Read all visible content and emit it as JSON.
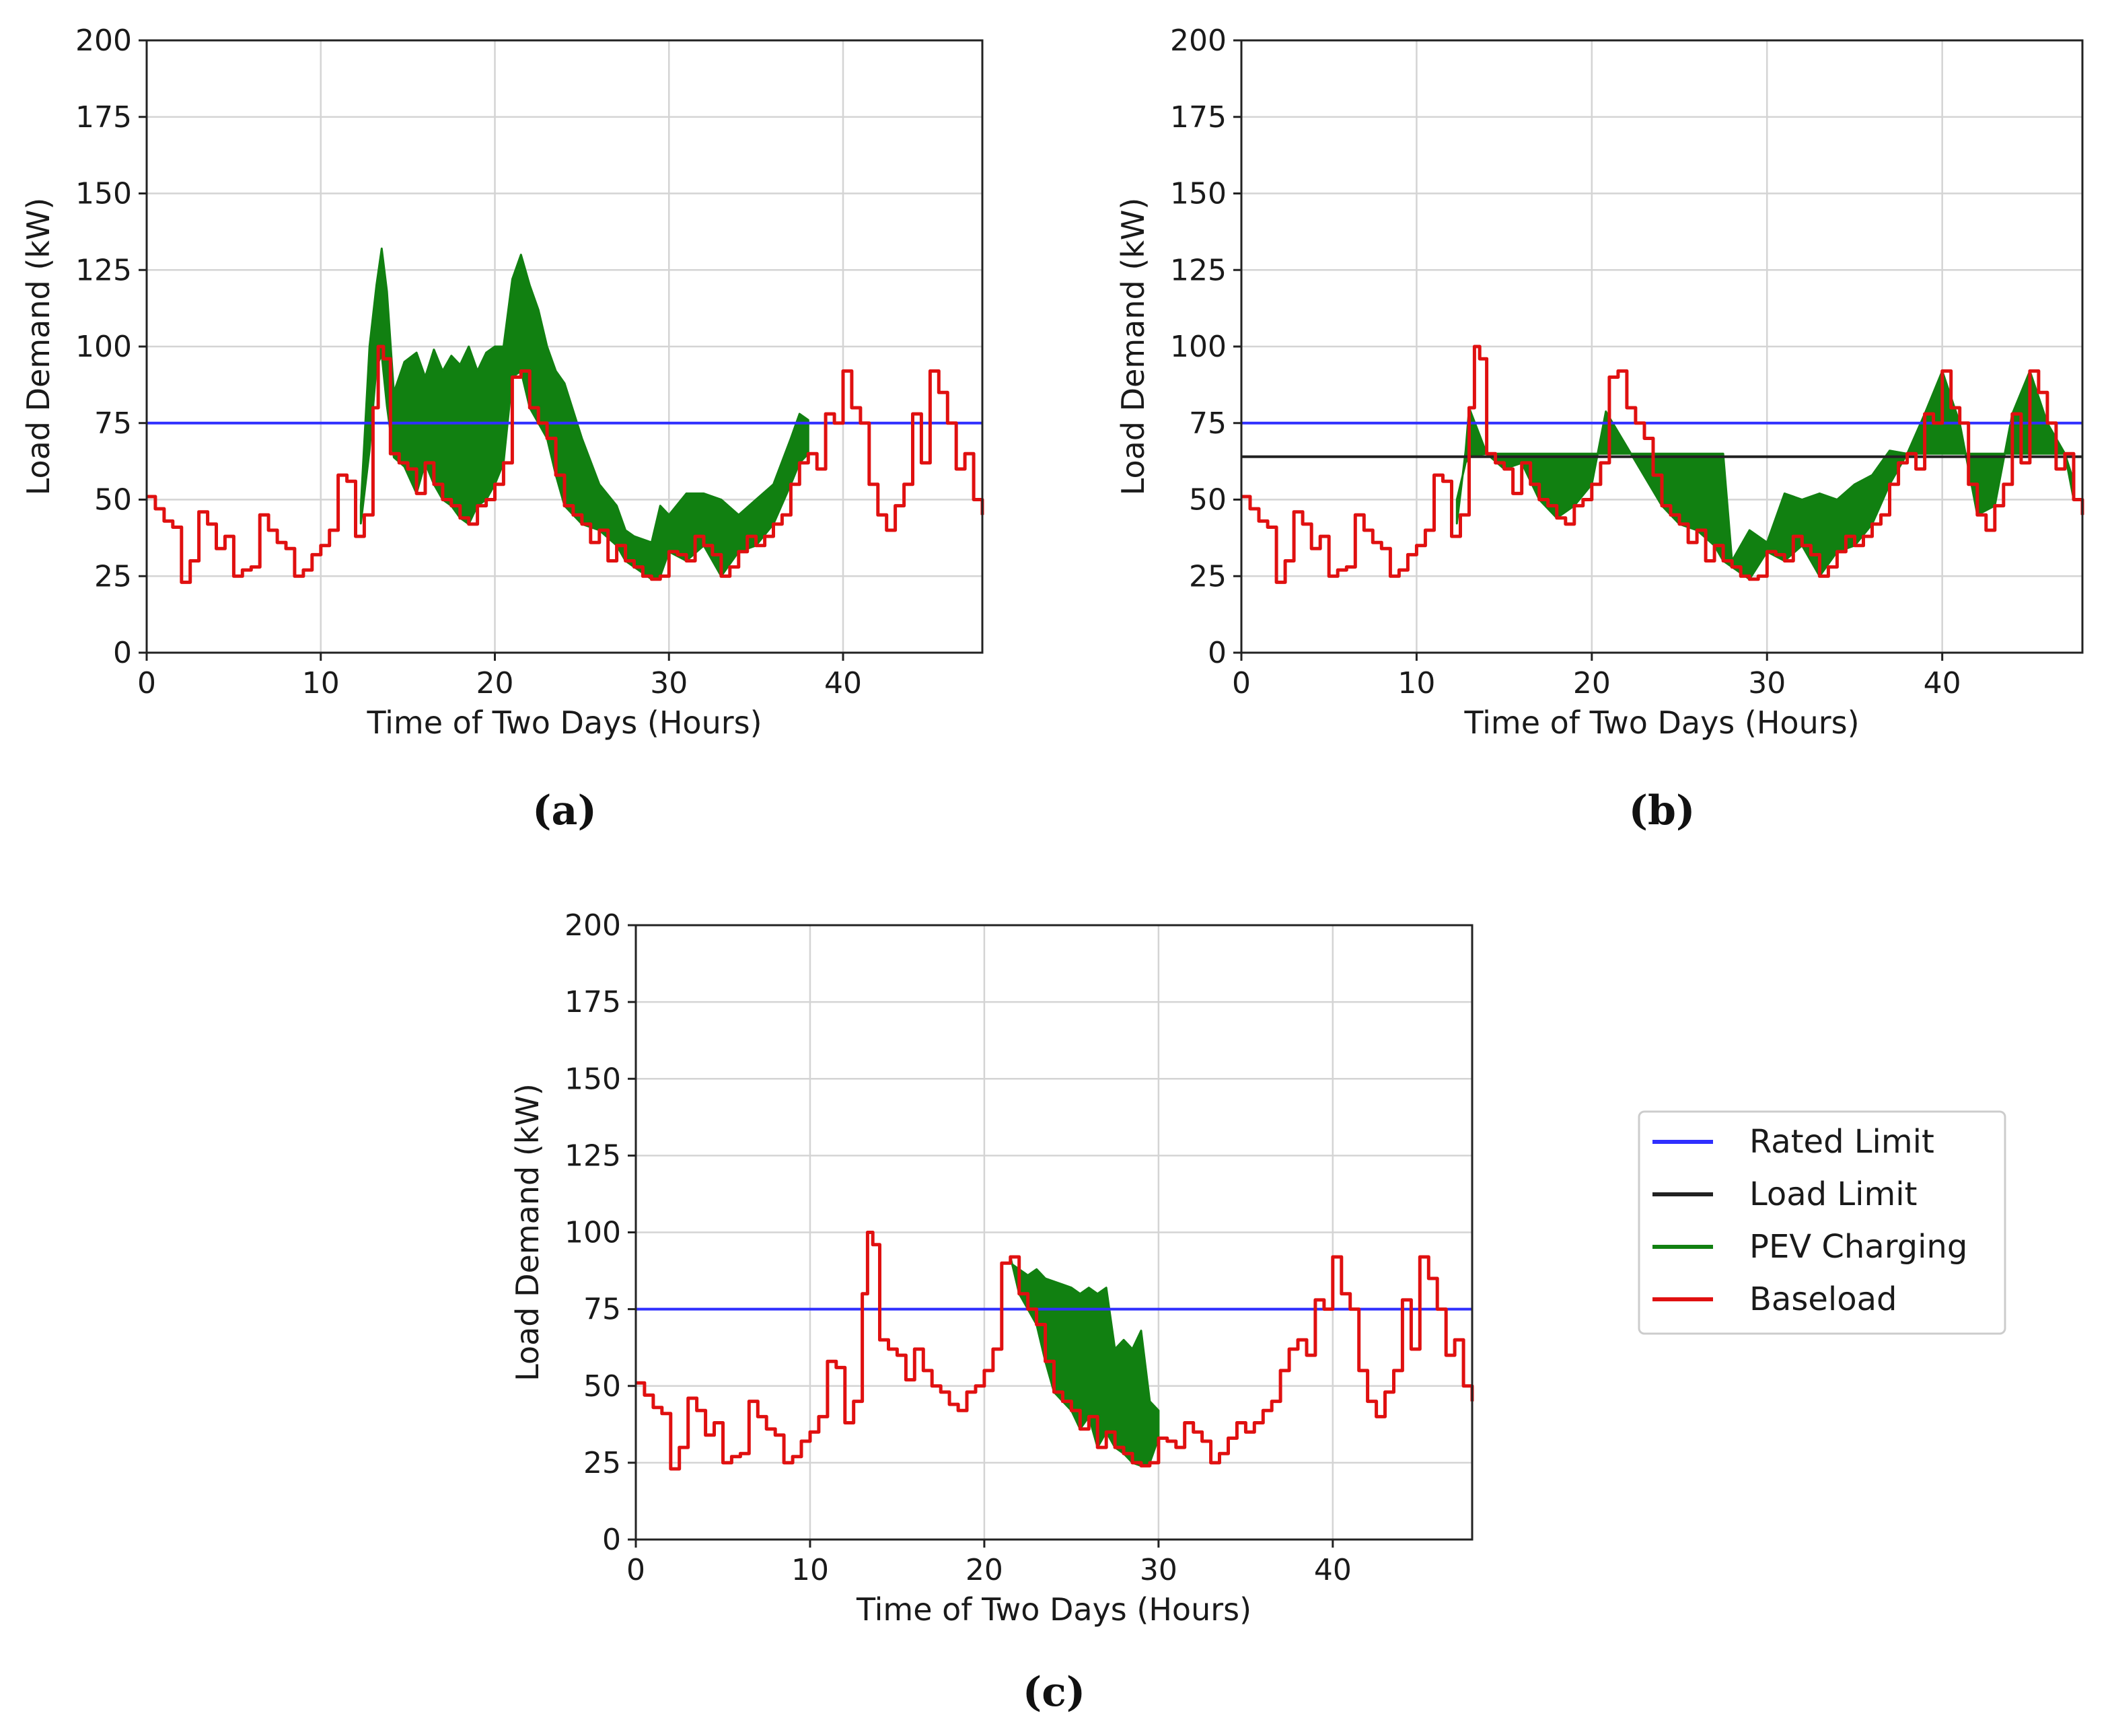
{
  "figure": {
    "legend": [
      {
        "label": "Rated Limit",
        "color": "#2f2fff"
      },
      {
        "label": "Load Limit",
        "color": "#222222"
      },
      {
        "label": "PEV Charging",
        "color": "#118011"
      },
      {
        "label": "Baseload",
        "color": "#e01010"
      }
    ]
  },
  "chart_data": [
    {
      "type": "line",
      "panel_label": "(a)",
      "xlabel": "Time of Two Days (Hours)",
      "ylabel": "Load Demand (kW)",
      "xlim": [
        0,
        48
      ],
      "ylim": [
        0,
        200
      ],
      "xticks": [
        0,
        10,
        20,
        30,
        40
      ],
      "yticks": [
        0,
        25,
        50,
        75,
        100,
        125,
        150,
        175,
        200
      ],
      "grid": true,
      "rated_limit": 75,
      "load_limit": null,
      "pev_charging": {
        "x": [
          12.3,
          12.8,
          13.2,
          13.5,
          13.8,
          14.2,
          14.8,
          15.5,
          16.0,
          16.5,
          17.0,
          17.5,
          18.0,
          18.5,
          19.0,
          19.5,
          20.0,
          20.5,
          21.0,
          21.5,
          22.0,
          22.5,
          23.0,
          23.5,
          24.0,
          25.0,
          26.0,
          27.0,
          27.5,
          28.0,
          29.0,
          29.5,
          30.0,
          31.0,
          32.0,
          33.0,
          34.0,
          35.0,
          36.0,
          37.0,
          37.5,
          38.0
        ],
        "top": [
          48,
          100,
          120,
          132,
          118,
          85,
          95,
          98,
          90,
          99,
          92,
          97,
          94,
          100,
          92,
          98,
          100,
          100,
          122,
          130,
          120,
          112,
          100,
          92,
          88,
          70,
          55,
          48,
          40,
          38,
          36,
          48,
          45,
          52,
          52,
          50,
          45,
          50,
          55,
          70,
          78,
          76
        ]
      },
      "baseload": {
        "x": [
          0,
          0.5,
          1.0,
          1.5,
          2.0,
          2.5,
          3.0,
          3.5,
          4.0,
          4.5,
          5.0,
          5.5,
          6.0,
          6.5,
          7.0,
          7.5,
          8.0,
          8.5,
          9.0,
          9.5,
          10.0,
          10.5,
          11.0,
          11.5,
          12.0,
          12.5,
          13.0,
          13.3,
          13.6,
          14.0,
          14.5,
          15.0,
          15.5,
          16.0,
          16.5,
          17.0,
          17.5,
          18.0,
          18.5,
          19.0,
          19.5,
          20.0,
          20.5,
          21.0,
          21.5,
          22.0,
          22.5,
          23.0,
          23.5,
          24.0,
          24.5,
          25.0,
          25.5,
          26.0,
          26.5,
          27.0,
          27.5,
          28.0,
          28.5,
          29.0,
          29.5,
          30.0,
          30.5,
          31.0,
          31.5,
          32.0,
          32.5,
          33.0,
          33.5,
          34.0,
          34.5,
          35.0,
          35.5,
          36.0,
          36.5,
          37.0,
          37.5,
          38.0,
          38.5,
          39.0,
          39.5,
          40.0,
          40.5,
          41.0,
          41.5,
          42.0,
          42.5,
          43.0,
          43.5,
          44.0,
          44.5,
          45.0,
          45.5,
          46.0,
          46.5,
          47.0,
          47.5,
          48.0
        ],
        "y": [
          51,
          47,
          43,
          41,
          23,
          30,
          46,
          42,
          34,
          38,
          25,
          27,
          28,
          45,
          40,
          36,
          34,
          25,
          27,
          32,
          35,
          40,
          58,
          56,
          38,
          45,
          80,
          100,
          96,
          65,
          62,
          60,
          52,
          62,
          55,
          50,
          48,
          44,
          42,
          48,
          50,
          55,
          62,
          90,
          92,
          80,
          75,
          70,
          58,
          48,
          45,
          42,
          36,
          40,
          30,
          35,
          30,
          28,
          25,
          24,
          25,
          33,
          32,
          30,
          38,
          35,
          32,
          25,
          28,
          33,
          38,
          35,
          38,
          42,
          45,
          55,
          62,
          65,
          60,
          78,
          75,
          92,
          80,
          75,
          55,
          45,
          40,
          48,
          55,
          78,
          62,
          92,
          85,
          75,
          60,
          65,
          50,
          45
        ]
      }
    },
    {
      "type": "line",
      "panel_label": "(b)",
      "xlabel": "Time of Two Days (Hours)",
      "ylabel": "Load Demand (kW)",
      "xlim": [
        0,
        48
      ],
      "ylim": [
        0,
        200
      ],
      "xticks": [
        0,
        10,
        20,
        30,
        40
      ],
      "yticks": [
        0,
        25,
        50,
        75,
        100,
        125,
        150,
        175,
        200
      ],
      "grid": true,
      "rated_limit": 75,
      "load_limit": 64,
      "pev_charging": {
        "x": [
          12.3,
          12.8,
          13.0,
          14.0,
          15.0,
          16.0,
          17.0,
          18.0,
          19.0,
          20.0,
          20.8,
          24.0,
          25.0,
          26.0,
          27.0,
          27.5,
          28.0,
          29.0,
          30.0,
          31.0,
          32.0,
          33.0,
          34.0,
          35.0,
          36.0,
          37.0,
          38.0,
          39.0,
          40.0,
          41.0,
          42.0,
          43.0,
          44.0,
          45.0,
          46.0,
          47.0,
          47.5
        ],
        "top": [
          50,
          62,
          64,
          65,
          65,
          65,
          65,
          65,
          65,
          65,
          65,
          65,
          65,
          65,
          65,
          65,
          30,
          40,
          36,
          52,
          50,
          52,
          50,
          55,
          58,
          66,
          65,
          65,
          65,
          65,
          65,
          65,
          65,
          65,
          65,
          65,
          56
        ]
      },
      "baseload": {
        "x": [
          0,
          0.5,
          1.0,
          1.5,
          2.0,
          2.5,
          3.0,
          3.5,
          4.0,
          4.5,
          5.0,
          5.5,
          6.0,
          6.5,
          7.0,
          7.5,
          8.0,
          8.5,
          9.0,
          9.5,
          10.0,
          10.5,
          11.0,
          11.5,
          12.0,
          12.5,
          13.0,
          13.3,
          13.6,
          14.0,
          14.5,
          15.0,
          15.5,
          16.0,
          16.5,
          17.0,
          17.5,
          18.0,
          18.5,
          19.0,
          19.5,
          20.0,
          20.5,
          21.0,
          21.5,
          22.0,
          22.5,
          23.0,
          23.5,
          24.0,
          24.5,
          25.0,
          25.5,
          26.0,
          26.5,
          27.0,
          27.5,
          28.0,
          28.5,
          29.0,
          29.5,
          30.0,
          30.5,
          31.0,
          31.5,
          32.0,
          32.5,
          33.0,
          33.5,
          34.0,
          34.5,
          35.0,
          35.5,
          36.0,
          36.5,
          37.0,
          37.5,
          38.0,
          38.5,
          39.0,
          39.5,
          40.0,
          40.5,
          41.0,
          41.5,
          42.0,
          42.5,
          43.0,
          43.5,
          44.0,
          44.5,
          45.0,
          45.5,
          46.0,
          46.5,
          47.0,
          47.5,
          48.0
        ],
        "y": [
          51,
          47,
          43,
          41,
          23,
          30,
          46,
          42,
          34,
          38,
          25,
          27,
          28,
          45,
          40,
          36,
          34,
          25,
          27,
          32,
          35,
          40,
          58,
          56,
          38,
          45,
          80,
          100,
          96,
          65,
          62,
          60,
          52,
          62,
          55,
          50,
          48,
          44,
          42,
          48,
          50,
          55,
          62,
          90,
          92,
          80,
          75,
          70,
          58,
          48,
          45,
          42,
          36,
          40,
          30,
          35,
          30,
          28,
          25,
          24,
          25,
          33,
          32,
          30,
          38,
          35,
          32,
          25,
          28,
          33,
          38,
          35,
          38,
          42,
          45,
          55,
          62,
          65,
          60,
          78,
          75,
          92,
          80,
          75,
          55,
          45,
          40,
          48,
          55,
          78,
          62,
          92,
          85,
          75,
          60,
          65,
          50,
          45
        ]
      }
    },
    {
      "type": "line",
      "panel_label": "(c)",
      "xlabel": "Time of Two Days (Hours)",
      "ylabel": "Load Demand (kW)",
      "xlim": [
        0,
        48
      ],
      "ylim": [
        0,
        200
      ],
      "xticks": [
        0,
        10,
        20,
        30,
        40
      ],
      "yticks": [
        0,
        25,
        50,
        75,
        100,
        125,
        150,
        175,
        200
      ],
      "grid": true,
      "rated_limit": 75,
      "load_limit": null,
      "pev_charging": {
        "x": [
          21.5,
          22.0,
          22.5,
          23.0,
          23.5,
          24.0,
          24.5,
          25.0,
          25.5,
          26.0,
          26.5,
          27.0,
          27.5,
          28.0,
          28.5,
          29.0,
          29.5,
          30.0
        ],
        "top": [
          90,
          88,
          86,
          88,
          85,
          84,
          83,
          82,
          80,
          82,
          80,
          82,
          62,
          65,
          62,
          68,
          45,
          42
        ]
      },
      "baseload": {
        "x": [
          0,
          0.5,
          1.0,
          1.5,
          2.0,
          2.5,
          3.0,
          3.5,
          4.0,
          4.5,
          5.0,
          5.5,
          6.0,
          6.5,
          7.0,
          7.5,
          8.0,
          8.5,
          9.0,
          9.5,
          10.0,
          10.5,
          11.0,
          11.5,
          12.0,
          12.5,
          13.0,
          13.3,
          13.6,
          14.0,
          14.5,
          15.0,
          15.5,
          16.0,
          16.5,
          17.0,
          17.5,
          18.0,
          18.5,
          19.0,
          19.5,
          20.0,
          20.5,
          21.0,
          21.5,
          22.0,
          22.5,
          23.0,
          23.5,
          24.0,
          24.5,
          25.0,
          25.5,
          26.0,
          26.5,
          27.0,
          27.5,
          28.0,
          28.5,
          29.0,
          29.5,
          30.0,
          30.5,
          31.0,
          31.5,
          32.0,
          32.5,
          33.0,
          33.5,
          34.0,
          34.5,
          35.0,
          35.5,
          36.0,
          36.5,
          37.0,
          37.5,
          38.0,
          38.5,
          39.0,
          39.5,
          40.0,
          40.5,
          41.0,
          41.5,
          42.0,
          42.5,
          43.0,
          43.5,
          44.0,
          44.5,
          45.0,
          45.5,
          46.0,
          46.5,
          47.0,
          47.5,
          48.0
        ],
        "y": [
          51,
          47,
          43,
          41,
          23,
          30,
          46,
          42,
          34,
          38,
          25,
          27,
          28,
          45,
          40,
          36,
          34,
          25,
          27,
          32,
          35,
          40,
          58,
          56,
          38,
          45,
          80,
          100,
          96,
          65,
          62,
          60,
          52,
          62,
          55,
          50,
          48,
          44,
          42,
          48,
          50,
          55,
          62,
          90,
          92,
          80,
          75,
          70,
          58,
          48,
          45,
          42,
          36,
          40,
          30,
          35,
          30,
          28,
          25,
          24,
          25,
          33,
          32,
          30,
          38,
          35,
          32,
          25,
          28,
          33,
          38,
          35,
          38,
          42,
          45,
          55,
          62,
          65,
          60,
          78,
          75,
          92,
          80,
          75,
          55,
          45,
          40,
          48,
          55,
          78,
          62,
          92,
          85,
          75,
          60,
          65,
          50,
          45
        ]
      }
    }
  ]
}
